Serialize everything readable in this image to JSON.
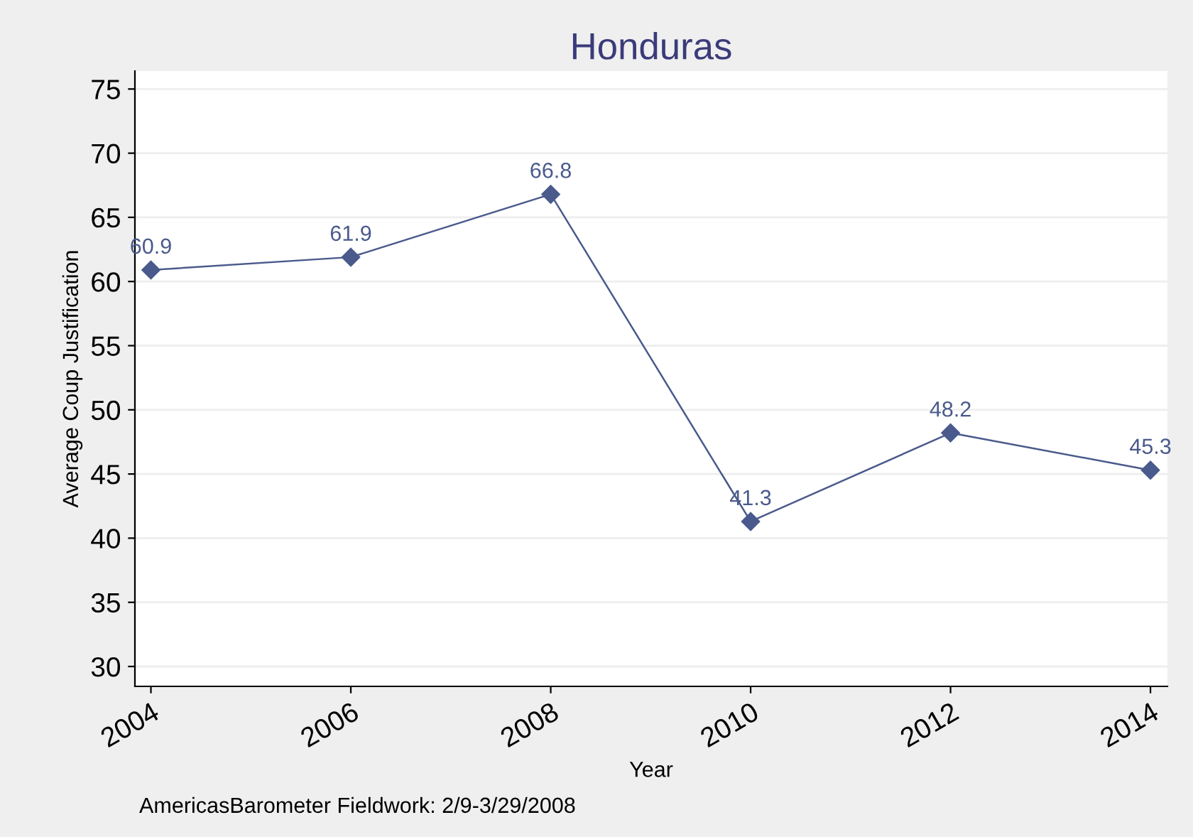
{
  "chart_data": {
    "type": "line",
    "title": "Honduras",
    "xlabel": "Year",
    "ylabel": "Average Coup Justification",
    "x": [
      2004,
      2006,
      2008,
      2010,
      2012,
      2014
    ],
    "series": [
      {
        "color": "#4a5a8c",
        "values": [
          60.9,
          61.9,
          66.8,
          41.3,
          48.2,
          45.3
        ]
      }
    ],
    "xlim": [
      2003.84,
      2014.17
    ],
    "xticks": [
      2004,
      2006,
      2008,
      2010,
      2012,
      2014
    ],
    "ylim": [
      28.45,
      76.4
    ],
    "yticks": [
      30,
      35,
      40,
      45,
      50,
      55,
      60,
      65,
      70,
      75
    ],
    "grid": "y",
    "marker": "diamond",
    "line_style": "solid",
    "data_labels": true,
    "annotations": [
      "AmericasBarometer Fieldwork: 2/9-3/29/2008"
    ]
  }
}
